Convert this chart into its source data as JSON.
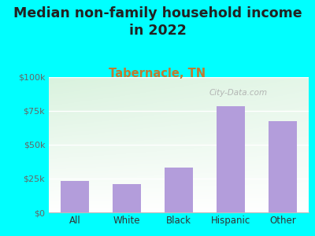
{
  "title": "Median non-family household income\nin 2022",
  "subtitle": "Tabernacle, TN",
  "categories": [
    "All",
    "White",
    "Black",
    "Hispanic",
    "Other"
  ],
  "values": [
    23000,
    21000,
    33000,
    78000,
    67000
  ],
  "bar_color": "#b39ddb",
  "title_fontsize": 12.5,
  "subtitle_fontsize": 10.5,
  "subtitle_color": "#c17a30",
  "title_color": "#222222",
  "background_outer": "#00ffff",
  "ylim": [
    0,
    100000
  ],
  "yticks": [
    0,
    25000,
    50000,
    75000,
    100000
  ],
  "ytick_labels": [
    "$0",
    "$25k",
    "$50k",
    "$75k",
    "$100k"
  ],
  "watermark": "City-Data.com",
  "watermark_color": "#aaaaaa"
}
